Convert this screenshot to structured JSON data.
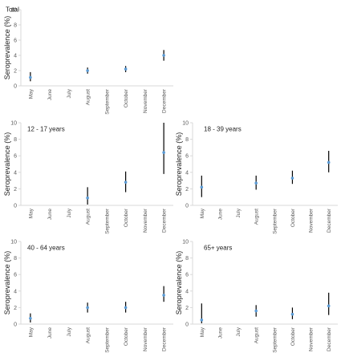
{
  "colors": {
    "axis": "#d9d9d9",
    "tick_text": "#595959",
    "title_text": "#222222",
    "whisker": "#000000",
    "point": "#5b9bd5"
  },
  "chart_data": [
    {
      "type": "scatter",
      "title": "Total",
      "ylabel": "Seroprevalence (%)",
      "categories": [
        "May",
        "June",
        "July",
        "August",
        "September",
        "October",
        "November",
        "December"
      ],
      "ylim": [
        0,
        10
      ],
      "yticks": [
        0,
        2,
        4,
        6,
        8,
        10
      ],
      "grid": false,
      "points": [
        {
          "x": "May",
          "y": 1.1,
          "low": 0.6,
          "high": 1.8
        },
        {
          "x": "August",
          "y": 2.0,
          "low": 1.6,
          "high": 2.4
        },
        {
          "x": "October",
          "y": 2.2,
          "low": 1.8,
          "high": 2.6
        },
        {
          "x": "December",
          "y": 4.0,
          "low": 3.3,
          "high": 4.7
        }
      ]
    },
    {
      "type": "scatter",
      "title": "12 - 17 years",
      "ylabel": "Seroprevalence (%)",
      "categories": [
        "May",
        "June",
        "July",
        "August",
        "September",
        "October",
        "November",
        "December"
      ],
      "ylim": [
        0,
        10
      ],
      "yticks": [
        0,
        2,
        4,
        6,
        8,
        10
      ],
      "grid": false,
      "points": [
        {
          "x": "August",
          "y": 0.9,
          "low": 0.1,
          "high": 2.2
        },
        {
          "x": "October",
          "y": 2.8,
          "low": 1.6,
          "high": 4.1
        },
        {
          "x": "December",
          "y": 6.4,
          "low": 3.8,
          "high": 10.0
        }
      ]
    },
    {
      "type": "scatter",
      "title": "18 - 39 years",
      "ylabel": "Seroprevalence (%)",
      "categories": [
        "May",
        "June",
        "July",
        "August",
        "September",
        "October",
        "November",
        "December"
      ],
      "ylim": [
        0,
        10
      ],
      "yticks": [
        0,
        2,
        4,
        6,
        8,
        10
      ],
      "grid": false,
      "points": [
        {
          "x": "May",
          "y": 2.2,
          "low": 1.0,
          "high": 3.6
        },
        {
          "x": "August",
          "y": 2.7,
          "low": 1.9,
          "high": 3.6
        },
        {
          "x": "October",
          "y": 3.3,
          "low": 2.6,
          "high": 4.2
        },
        {
          "x": "December",
          "y": 5.2,
          "low": 4.0,
          "high": 6.6
        }
      ]
    },
    {
      "type": "scatter",
      "title": "40 - 64 years",
      "ylabel": "Seroprevalence (%)",
      "categories": [
        "May",
        "June",
        "July",
        "August",
        "September",
        "October",
        "November",
        "December"
      ],
      "ylim": [
        0,
        10
      ],
      "yticks": [
        0,
        2,
        4,
        6,
        8,
        10
      ],
      "grid": false,
      "points": [
        {
          "x": "May",
          "y": 0.7,
          "low": 0.2,
          "high": 1.3
        },
        {
          "x": "August",
          "y": 2.0,
          "low": 1.4,
          "high": 2.6
        },
        {
          "x": "October",
          "y": 2.0,
          "low": 1.4,
          "high": 2.7
        },
        {
          "x": "December",
          "y": 3.5,
          "low": 2.7,
          "high": 4.6
        }
      ]
    },
    {
      "type": "scatter",
      "title": "65+ years",
      "ylabel": "Seroprevalence (%)",
      "categories": [
        "May",
        "June",
        "July",
        "August",
        "September",
        "October",
        "November",
        "December"
      ],
      "ylim": [
        0,
        10
      ],
      "yticks": [
        0,
        2,
        4,
        6,
        8,
        10
      ],
      "grid": false,
      "points": [
        {
          "x": "May",
          "y": 0.5,
          "low": 0.1,
          "high": 2.5
        },
        {
          "x": "August",
          "y": 1.6,
          "low": 0.9,
          "high": 2.3
        },
        {
          "x": "October",
          "y": 1.2,
          "low": 0.6,
          "high": 2.0
        },
        {
          "x": "December",
          "y": 2.2,
          "low": 1.1,
          "high": 3.8
        }
      ]
    }
  ]
}
